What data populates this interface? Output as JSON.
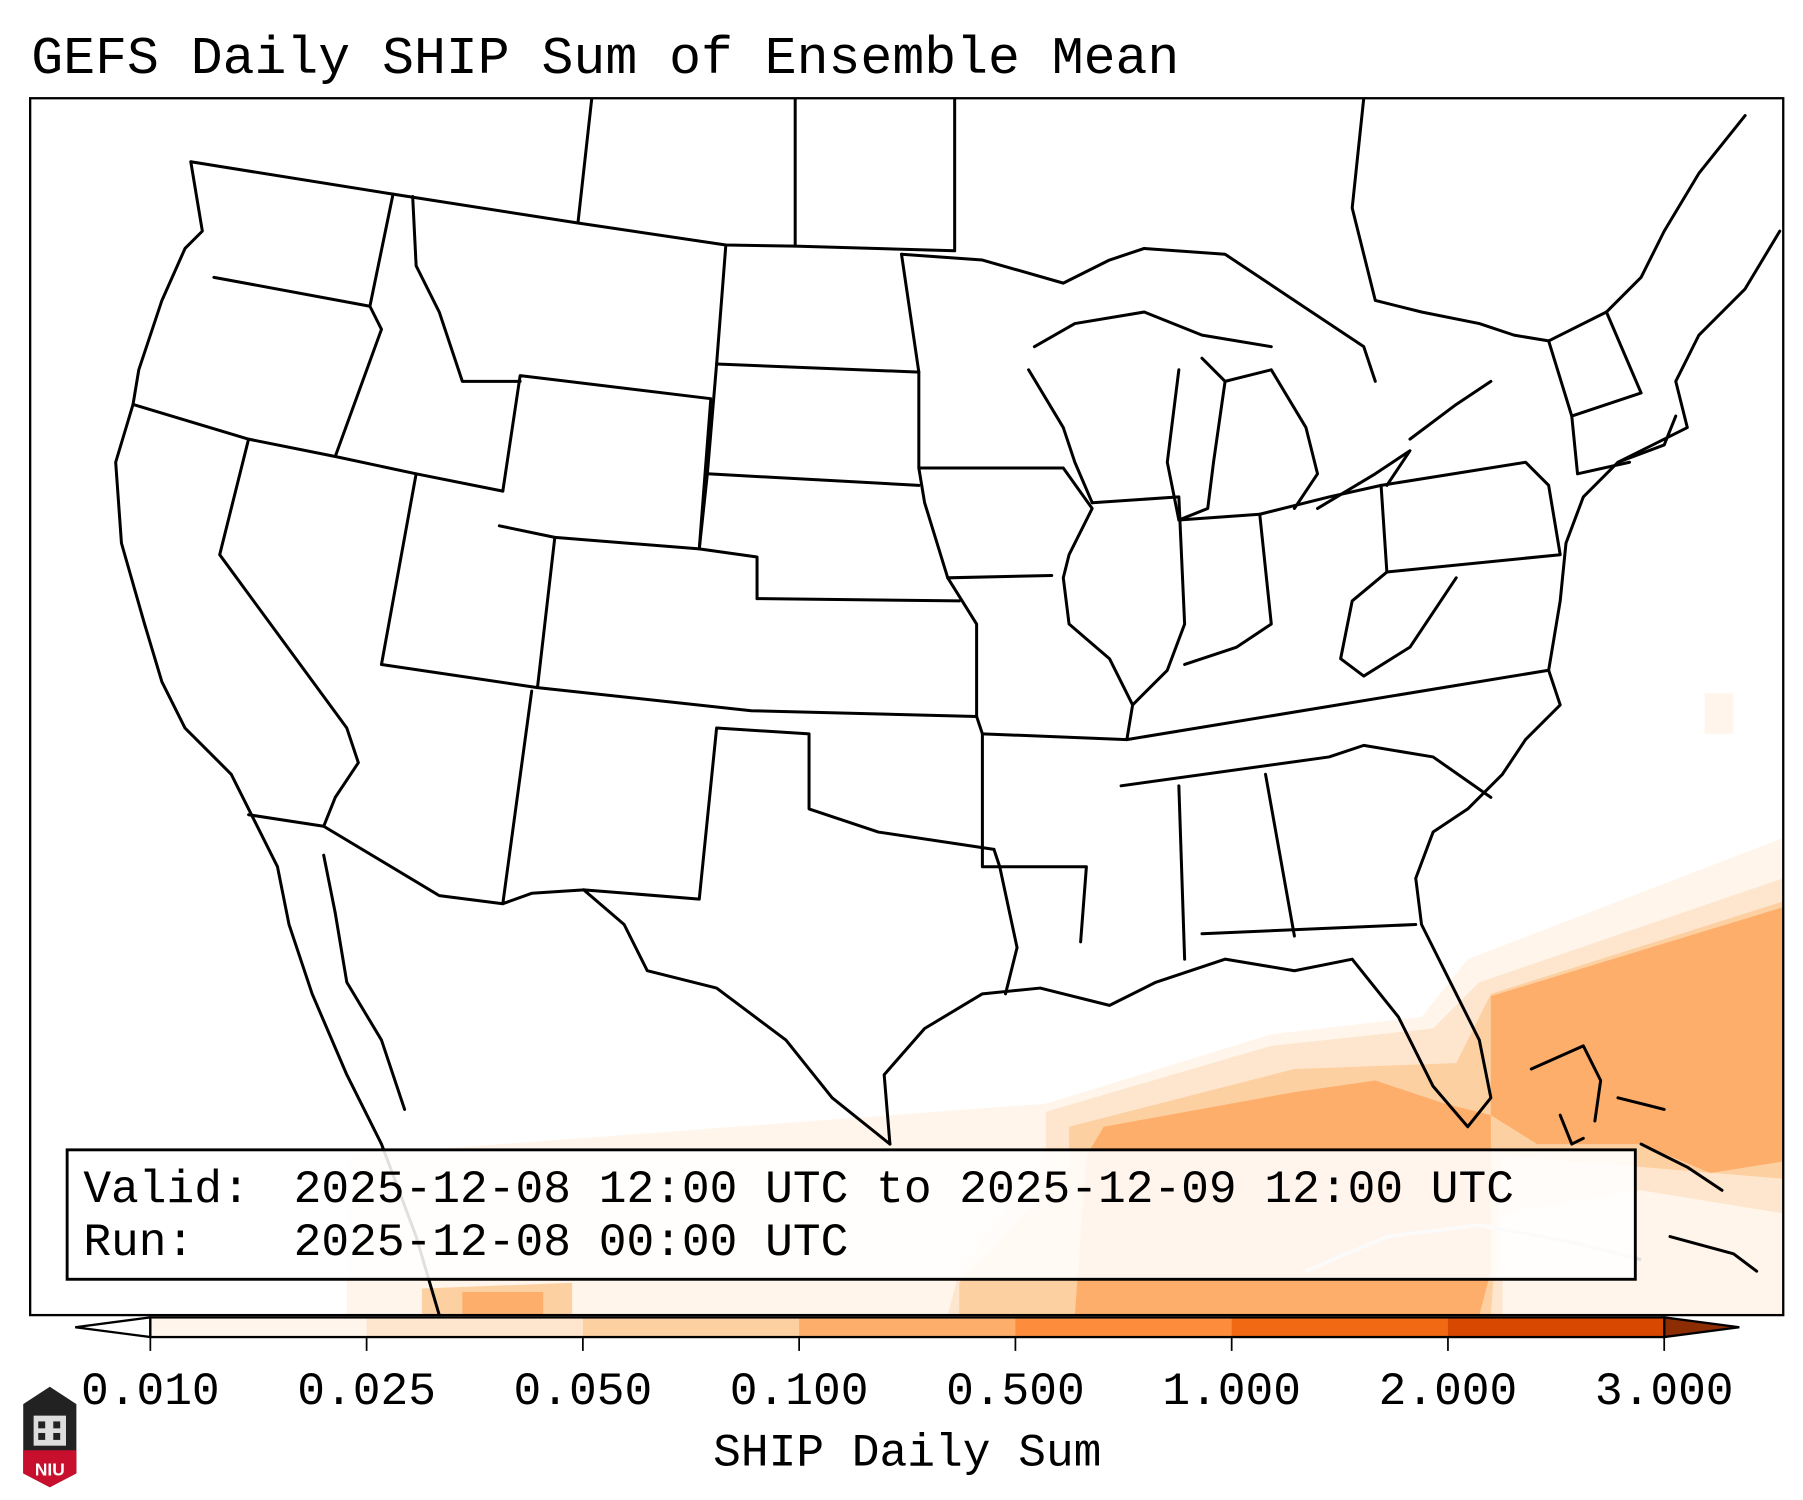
{
  "title": "GEFS Daily SHIP Sum of Ensemble Mean",
  "info": {
    "valid_label": "Valid:",
    "valid_value": "2025-12-08 12:00 UTC to 2025-12-09 12:00 UTC",
    "run_label": "Run:",
    "run_value": "2025-12-08 00:00 UTC"
  },
  "colorbar": {
    "label": "SHIP Daily Sum",
    "ticks": [
      "0.010",
      "0.025",
      "0.050",
      "0.100",
      "0.500",
      "1.000",
      "2.000",
      "3.000"
    ],
    "colors": [
      "#fff5eb",
      "#fee6ce",
      "#fdd0a2",
      "#fdae6b",
      "#fd8d3c",
      "#f16913",
      "#d94801"
    ],
    "under_color": "#ffffff",
    "over_color": "#8c2d04"
  },
  "field_colors": {
    "level_0010": "#fff5eb",
    "level_0025": "#fee6ce",
    "level_0050": "#fdd0a2",
    "level_0100": "#fdae6b"
  },
  "logo": {
    "text": "NIU",
    "color": "#c8102e"
  }
}
